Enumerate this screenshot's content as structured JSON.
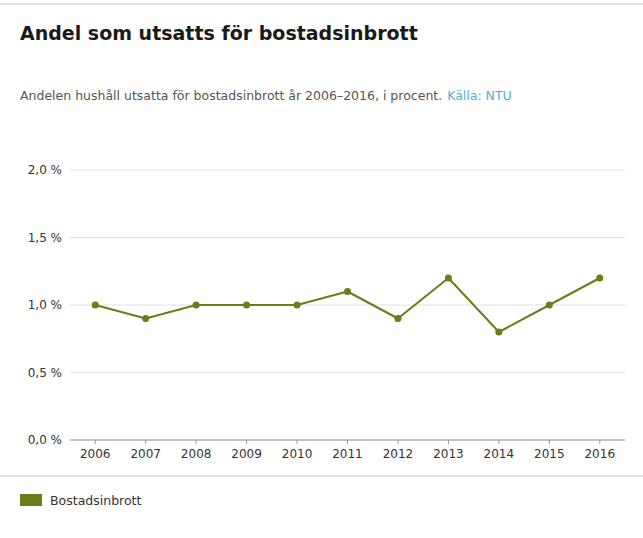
{
  "chart_data": {
    "type": "line",
    "title": "Andel som utsatts för bostadsinbrott",
    "subtitle": "Andelen hushåll utsatta för bostadsinbrott år 2006–2016, i procent.",
    "annotations": [
      {
        "text": "Källa: NTU",
        "color": "#4db3c8"
      }
    ],
    "x": [
      2006,
      2007,
      2008,
      2009,
      2010,
      2011,
      2012,
      2013,
      2014,
      2015,
      2016
    ],
    "xlim": [
      2005.5,
      2016.5
    ],
    "xticks": [
      2006,
      2007,
      2008,
      2009,
      2010,
      2011,
      2012,
      2013,
      2014,
      2015,
      2016
    ],
    "ylim": [
      0.0,
      2.0
    ],
    "yticks": [
      {
        "value": 0.0,
        "label": "0,0 %"
      },
      {
        "value": 0.5,
        "label": "0,5 %"
      },
      {
        "value": 1.0,
        "label": "1,0 %"
      },
      {
        "value": 1.5,
        "label": "1,5 %"
      },
      {
        "value": 2.0,
        "label": "2,0 %"
      }
    ],
    "grid": true,
    "legend": "bottom-left",
    "series": [
      {
        "name": "Bostadsinbrott",
        "color": "#6b7c1a",
        "marker": "circle",
        "values": [
          1.0,
          0.9,
          1.0,
          1.0,
          1.0,
          1.1,
          0.9,
          1.2,
          0.8,
          1.0,
          1.2
        ]
      }
    ]
  }
}
